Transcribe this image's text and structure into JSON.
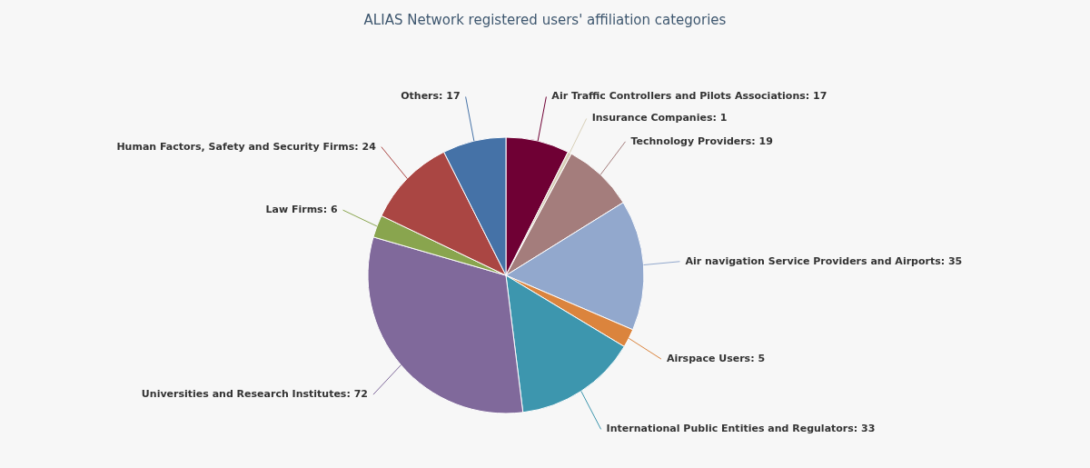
{
  "chart_data": {
    "type": "pie",
    "title": "ALIAS Network registered users' affiliation categories",
    "categories": [
      "Air Traffic Controllers and Pilots Associations",
      "Insurance Companies",
      "Technology Providers",
      "Air navigation Service Providers and Airports",
      "Airspace Users",
      "International Public Entities and Regulators",
      "Universities and Research Institutes",
      "Law Firms",
      "Human Factors, Safety and Security Firms",
      "Others"
    ],
    "values": [
      17,
      1,
      19,
      35,
      5,
      33,
      72,
      6,
      24,
      17
    ],
    "value_labels": [
      ": 17",
      ": 1",
      ": 19",
      ": 35",
      ": 5",
      ": 33",
      ": 72",
      ": 6",
      ": 24",
      ": 17"
    ],
    "colors": [
      "#6f0034",
      "#d8d0b8",
      "#a47d7c",
      "#92a8cd",
      "#db843d",
      "#3d96ae",
      "#80699b",
      "#89a54e",
      "#aa4643",
      "#4572a7"
    ]
  }
}
